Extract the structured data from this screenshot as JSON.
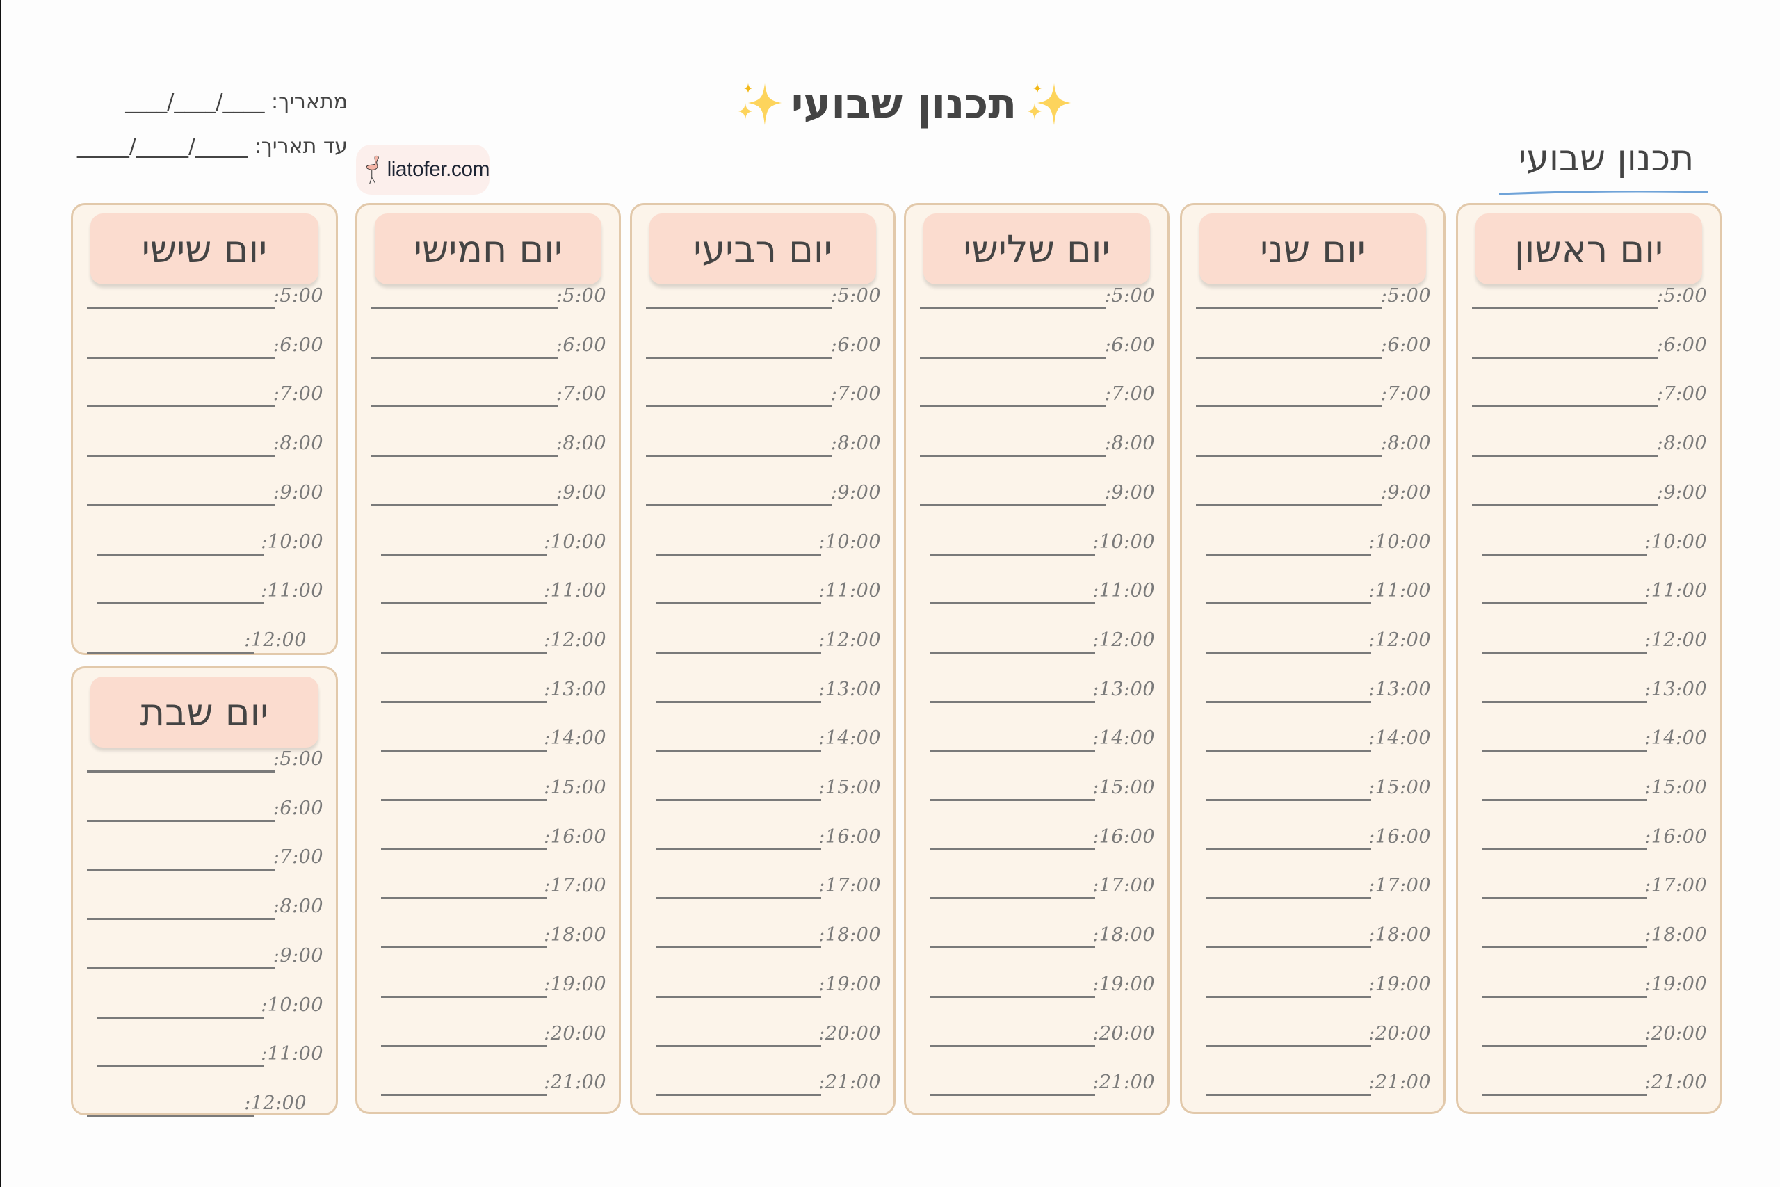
{
  "page": {
    "main_title": "תכנון שבועי",
    "main_title_icon": "sparkles-icon",
    "subtitle": "תכנון שבועי",
    "date_from_label": "מתאריך: ____/____/____",
    "date_to_label": "עד תאריך: _____/_____/_____",
    "logo_text": "liatofer.com",
    "logo_icon": "flamingo-icon"
  },
  "colors": {
    "card_bg": "#fcf4ea",
    "card_border": "#e2c9ab",
    "header_bg": "#fbdccf",
    "text": "#444444",
    "time_text": "#7a7a7a",
    "underline_accent": "#6fa3d8",
    "logo_bg": "#fcefec",
    "sparkle": "#f7c948"
  },
  "days": [
    {
      "name": "יום ראשון",
      "times": [
        ":5:00",
        ":6:00",
        ":7:00",
        ":8:00",
        ":9:00",
        ":10:00",
        ":11:00",
        ":12:00",
        ":13:00",
        ":14:00",
        ":15:00",
        ":16:00",
        ":17:00",
        ":18:00",
        ":19:00",
        ":20:00",
        ":21:00"
      ]
    },
    {
      "name": "יום שני",
      "times": [
        ":5:00",
        ":6:00",
        ":7:00",
        ":8:00",
        ":9:00",
        ":10:00",
        ":11:00",
        ":12:00",
        ":13:00",
        ":14:00",
        ":15:00",
        ":16:00",
        ":17:00",
        ":18:00",
        ":19:00",
        ":20:00",
        ":21:00"
      ]
    },
    {
      "name": "יום שלישי",
      "times": [
        ":5:00",
        ":6:00",
        ":7:00",
        ":8:00",
        ":9:00",
        ":10:00",
        ":11:00",
        ":12:00",
        ":13:00",
        ":14:00",
        ":15:00",
        ":16:00",
        ":17:00",
        ":18:00",
        ":19:00",
        ":20:00",
        ":21:00"
      ]
    },
    {
      "name": "יום רביעי",
      "times": [
        ":5:00",
        ":6:00",
        ":7:00",
        ":8:00",
        ":9:00",
        ":10:00",
        ":11:00",
        ":12:00",
        ":13:00",
        ":14:00",
        ":15:00",
        ":16:00",
        ":17:00",
        ":18:00",
        ":19:00",
        ":20:00",
        ":21:00"
      ]
    },
    {
      "name": "יום חמישי",
      "times": [
        ":5:00",
        ":6:00",
        ":7:00",
        ":8:00",
        ":9:00",
        ":10:00",
        ":11:00",
        ":12:00",
        ":13:00",
        ":14:00",
        ":15:00",
        ":16:00",
        ":17:00",
        ":18:00",
        ":19:00",
        ":20:00",
        ":21:00"
      ]
    },
    {
      "name": "יום שישי",
      "times": [
        ":5:00",
        ":6:00",
        ":7:00",
        ":8:00",
        ":9:00",
        ":10:00",
        ":11:00",
        ":12:00"
      ]
    },
    {
      "name": "יום שבת",
      "times": [
        ":5:00",
        ":6:00",
        ":7:00",
        ":8:00",
        ":9:00",
        ":10:00",
        ":11:00",
        ":12:00"
      ]
    }
  ]
}
